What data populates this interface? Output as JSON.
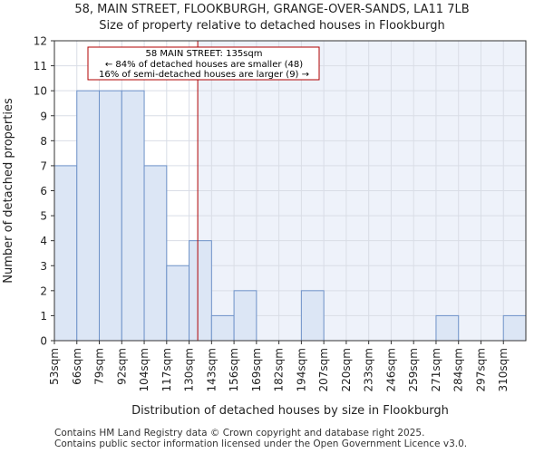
{
  "chart_data": {
    "type": "bar",
    "title": "58, MAIN STREET, FLOOKBURGH, GRANGE-OVER-SANDS, LA11 7LB",
    "subtitle": "Size of property relative to detached houses in Flookburgh",
    "xlabel": "Distribution of detached houses by size in Flookburgh",
    "ylabel": "Number of detached properties",
    "categories": [
      "53sqm",
      "66sqm",
      "79sqm",
      "92sqm",
      "104sqm",
      "117sqm",
      "130sqm",
      "143sqm",
      "156sqm",
      "169sqm",
      "182sqm",
      "194sqm",
      "207sqm",
      "220sqm",
      "233sqm",
      "246sqm",
      "259sqm",
      "271sqm",
      "284sqm",
      "297sqm",
      "310sqm"
    ],
    "values": [
      7,
      10,
      10,
      10,
      7,
      3,
      4,
      1,
      2,
      0,
      0,
      2,
      0,
      0,
      0,
      0,
      0,
      1,
      0,
      0,
      1
    ],
    "ylim": [
      0,
      12
    ],
    "yticks": [
      0,
      1,
      2,
      3,
      4,
      5,
      6,
      7,
      8,
      9,
      10,
      11,
      12
    ],
    "grid": true,
    "property_marker": 135,
    "annotation": {
      "line1": "58 MAIN STREET: 135sqm",
      "line2": "← 84% of detached houses are smaller (48)",
      "line3": "16% of semi-detached houses are larger (9) →"
    },
    "colors": {
      "bar_fill": "#dce6f5",
      "bar_stroke": "#6f93c9",
      "highlight_background": "#eef2fa",
      "marker_line": "#b00000",
      "annotation_border": "#b00000",
      "grid": "#d9dde6"
    }
  },
  "footer": {
    "line1": "Contains HM Land Registry data © Crown copyright and database right 2025.",
    "line2": "Contains public sector information licensed under the Open Government Licence v3.0."
  }
}
